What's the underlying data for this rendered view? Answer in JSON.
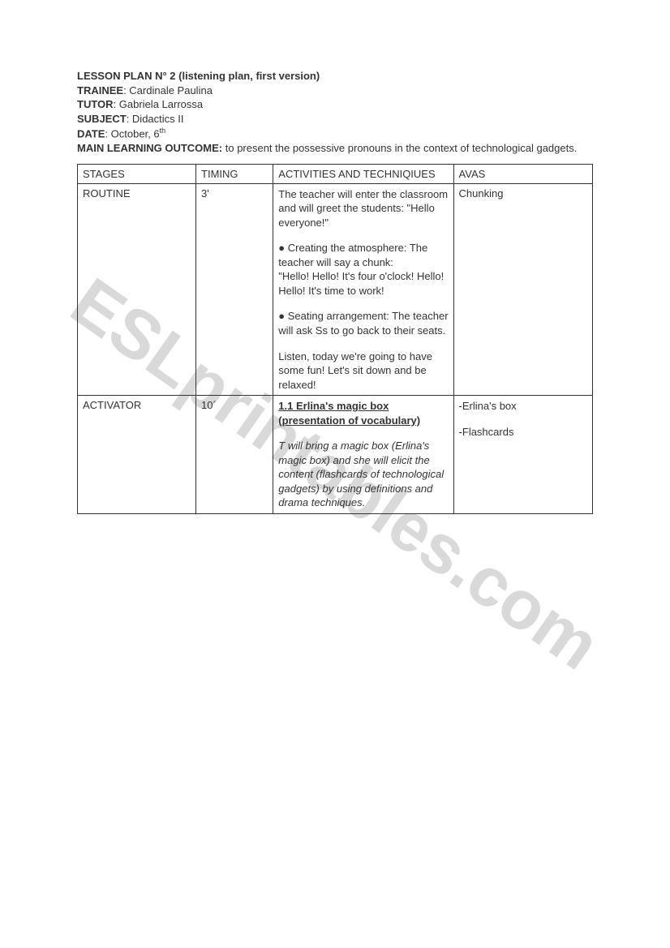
{
  "watermark": "ESLprintables.com",
  "header": {
    "title_label": "LESSON PLAN N° 2",
    "title_paren": "(listening plan, first version)",
    "trainee_label": "TRAINEE",
    "trainee_value": "Cardinale Paulina",
    "tutor_label": "TUTOR",
    "tutor_value": "Gabriela Larrossa",
    "subject_label": "SUBJECT",
    "subject_value": "Didactics II",
    "date_label": "DATE",
    "date_value_pre": "October, 6",
    "date_value_sup": "th",
    "mlo_label": "MAIN LEARNING OUTCOME:",
    "mlo_value": "to present the possessive pronouns in the context of technological gadgets."
  },
  "table": {
    "columns": {
      "stages": "STAGES",
      "timing": "TIMING",
      "activities": "ACTIVITIES AND TECHNIQIUES",
      "avas": "AVAS"
    },
    "rows": [
      {
        "stage": "ROUTINE",
        "timing": "3'",
        "activities": {
          "p1": "The teacher will enter the classroom and will greet the students: \"Hello everyone!\"",
          "p2": "● Creating the atmosphere: The teacher will  say a chunk:",
          "p3": "\"Hello! Hello! It's four o'clock! Hello! Hello! It's time to work!",
          "p4": "● Seating arrangement: The teacher will ask Ss to go back to their seats.",
          "p5": "Listen, today we're going to have some fun! Let's sit down and be relaxed!"
        },
        "avas": "Chunking"
      },
      {
        "stage": "ACTIVATOR",
        "timing": "10´",
        "activities": {
          "title": "1.1 Erlina's magic box (presentation of vocabulary)",
          "desc": "T will bring a magic box (Erlina's magic box) and she will elicit the content (flashcards of technological gadgets) by using definitions and drama techniques."
        },
        "avas": {
          "a1": "-Erlina's box",
          "a2": "-Flashcards"
        }
      }
    ]
  },
  "styles": {
    "text_color": "#333333",
    "border_color": "#333333",
    "watermark_color": "#d9d9d9",
    "background": "#ffffff",
    "font_size_body": 13,
    "font_size_watermark": 85
  }
}
